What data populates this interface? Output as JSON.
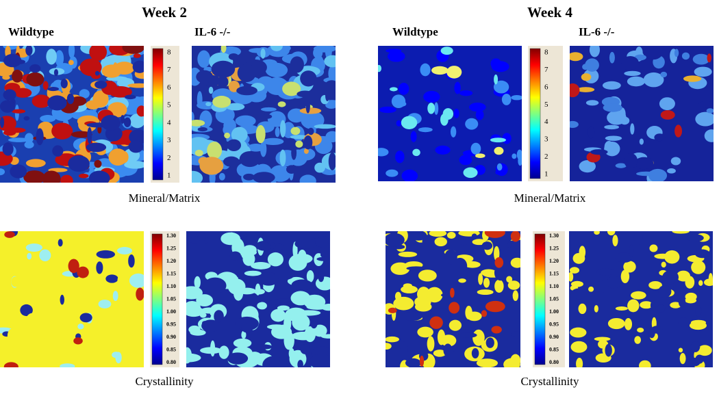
{
  "figure": {
    "columns": [
      {
        "title": "Week 2",
        "panels": [
          "Wildtype",
          "IL-6 -/-"
        ]
      },
      {
        "title": "Week 4",
        "panels": [
          "Wildtype",
          "IL-6 -/-"
        ]
      }
    ],
    "rows": [
      {
        "caption": "Mineral/Matrix",
        "colorbar": [
          "8",
          "7",
          "6",
          "5",
          "4",
          "3",
          "2",
          "1"
        ]
      },
      {
        "caption": "Crystallinity",
        "colorbar": [
          "1.30",
          "1.25",
          "1.20",
          "1.15",
          "1.10",
          "1.05",
          "1.00",
          "0.95",
          "0.90",
          "0.85",
          "0.80"
        ]
      }
    ]
  }
}
